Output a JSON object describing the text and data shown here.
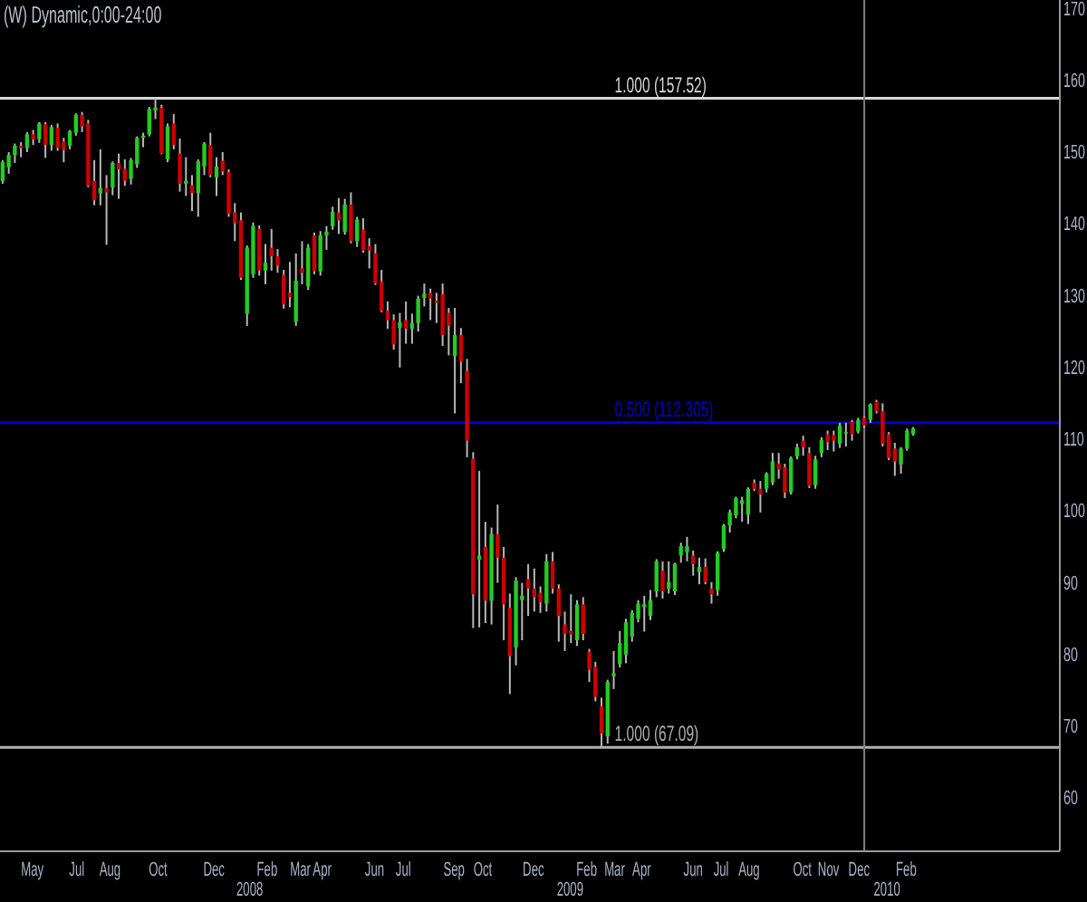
{
  "chart_data": {
    "type": "candlestick",
    "title": "(W) Dynamic,0:00-24:00",
    "x": [
      "2007-04-16",
      "2007-04-23",
      "2007-04-30",
      "2007-05-07",
      "2007-05-14",
      "2007-05-21",
      "2007-05-28",
      "2007-06-04",
      "2007-06-11",
      "2007-06-18",
      "2007-06-25",
      "2007-07-02",
      "2007-07-09",
      "2007-07-16",
      "2007-07-23",
      "2007-07-30",
      "2007-08-06",
      "2007-08-13",
      "2007-08-20",
      "2007-08-27",
      "2007-09-03",
      "2007-09-10",
      "2007-09-17",
      "2007-09-24",
      "2007-10-01",
      "2007-10-08",
      "2007-10-15",
      "2007-10-22",
      "2007-10-29",
      "2007-11-05",
      "2007-11-12",
      "2007-11-19",
      "2007-11-26",
      "2007-12-03",
      "2007-12-10",
      "2007-12-17",
      "2007-12-24",
      "2007-12-31",
      "2008-01-07",
      "2008-01-14",
      "2008-01-21",
      "2008-01-28",
      "2008-02-04",
      "2008-02-11",
      "2008-02-18",
      "2008-02-25",
      "2008-03-03",
      "2008-03-10",
      "2008-03-17",
      "2008-03-24",
      "2008-03-31",
      "2008-04-07",
      "2008-04-14",
      "2008-04-21",
      "2008-04-28",
      "2008-05-05",
      "2008-05-12",
      "2008-05-19",
      "2008-05-26",
      "2008-06-02",
      "2008-06-09",
      "2008-06-16",
      "2008-06-23",
      "2008-06-30",
      "2008-07-07",
      "2008-07-14",
      "2008-07-21",
      "2008-07-28",
      "2008-08-04",
      "2008-08-11",
      "2008-08-18",
      "2008-08-25",
      "2008-09-01",
      "2008-09-08",
      "2008-09-15",
      "2008-09-22",
      "2008-09-29",
      "2008-10-06",
      "2008-10-13",
      "2008-10-20",
      "2008-10-27",
      "2008-11-03",
      "2008-11-10",
      "2008-11-17",
      "2008-11-24",
      "2008-12-01",
      "2008-12-08",
      "2008-12-15",
      "2008-12-22",
      "2008-12-29",
      "2009-01-05",
      "2009-01-12",
      "2009-01-19",
      "2009-01-26",
      "2009-02-02",
      "2009-02-09",
      "2009-02-16",
      "2009-02-23",
      "2009-03-02",
      "2009-03-09",
      "2009-03-16",
      "2009-03-23",
      "2009-03-30",
      "2009-04-06",
      "2009-04-13",
      "2009-04-20",
      "2009-04-27",
      "2009-05-04",
      "2009-05-11",
      "2009-05-18",
      "2009-05-25",
      "2009-06-01",
      "2009-06-08",
      "2009-06-15",
      "2009-06-22",
      "2009-06-29",
      "2009-07-06",
      "2009-07-13",
      "2009-07-20",
      "2009-07-27",
      "2009-08-03",
      "2009-08-10",
      "2009-08-17",
      "2009-08-24",
      "2009-08-31",
      "2009-09-07",
      "2009-09-14",
      "2009-09-21",
      "2009-09-28",
      "2009-10-05",
      "2009-10-12",
      "2009-10-19",
      "2009-10-26",
      "2009-11-02",
      "2009-11-09",
      "2009-11-16",
      "2009-11-23",
      "2009-11-30",
      "2009-12-07",
      "2009-12-14",
      "2009-12-21",
      "2009-12-28",
      "2010-01-04",
      "2010-01-11",
      "2010-01-18",
      "2010-01-25",
      "2010-02-01",
      "2010-02-08",
      "2010-02-15",
      "2010-02-22"
    ],
    "ohlc": [
      [
        146.0,
        148.9,
        145.6,
        148.6
      ],
      [
        147.9,
        150.0,
        147.0,
        149.6
      ],
      [
        149.6,
        151.2,
        148.5,
        150.9
      ],
      [
        150.9,
        151.4,
        149.3,
        150.6
      ],
      [
        150.6,
        152.8,
        150.0,
        152.5
      ],
      [
        152.5,
        153.1,
        151.0,
        151.8
      ],
      [
        151.8,
        154.2,
        151.3,
        154.0
      ],
      [
        153.9,
        154.2,
        149.2,
        151.0
      ],
      [
        151.0,
        153.8,
        150.2,
        153.5
      ],
      [
        153.4,
        154.0,
        150.2,
        150.6
      ],
      [
        151.5,
        152.0,
        148.6,
        150.3
      ],
      [
        150.9,
        153.1,
        150.4,
        152.9
      ],
      [
        152.7,
        155.4,
        152.3,
        155.2
      ],
      [
        155.2,
        155.6,
        152.8,
        153.6
      ],
      [
        154.0,
        154.5,
        145.1,
        145.3
      ],
      [
        146.0,
        148.9,
        142.6,
        143.3
      ],
      [
        144.3,
        150.4,
        142.6,
        145.0
      ],
      [
        145.0,
        146.8,
        137.1,
        144.4
      ],
      [
        145.1,
        148.7,
        144.0,
        148.5
      ],
      [
        148.5,
        149.8,
        143.5,
        147.6
      ],
      [
        147.7,
        149.0,
        145.3,
        146.0
      ],
      [
        146.3,
        149.2,
        145.5,
        148.9
      ],
      [
        148.3,
        152.2,
        147.8,
        152.0
      ],
      [
        152.0,
        152.7,
        150.7,
        152.3
      ],
      [
        152.5,
        156.3,
        152.2,
        156.0
      ],
      [
        155.8,
        157.52,
        154.6,
        156.2
      ],
      [
        156.2,
        156.6,
        149.7,
        149.8
      ],
      [
        149.0,
        154.0,
        148.6,
        153.6
      ],
      [
        154.0,
        155.3,
        150.4,
        151.0
      ],
      [
        149.8,
        151.9,
        144.5,
        145.6
      ],
      [
        145.6,
        149.3,
        143.9,
        146.0
      ],
      [
        145.4,
        146.8,
        141.8,
        144.3
      ],
      [
        144.3,
        149.0,
        141.0,
        148.7
      ],
      [
        148.0,
        151.4,
        146.8,
        151.2
      ],
      [
        151.0,
        152.7,
        146.5,
        146.8
      ],
      [
        146.5,
        149.3,
        143.9,
        148.0
      ],
      [
        148.8,
        150.0,
        146.8,
        147.3
      ],
      [
        147.2,
        147.6,
        141.0,
        141.4
      ],
      [
        141.6,
        142.9,
        137.6,
        140.1
      ],
      [
        140.5,
        141.6,
        132.2,
        132.5
      ],
      [
        127.5,
        137.0,
        125.8,
        136.7
      ],
      [
        133.0,
        140.2,
        132.5,
        139.7
      ],
      [
        139.3,
        139.8,
        132.8,
        133.5
      ],
      [
        133.5,
        137.2,
        131.6,
        134.6
      ],
      [
        136.7,
        139.3,
        133.5,
        135.5
      ],
      [
        135.5,
        136.5,
        133.2,
        134.2
      ],
      [
        132.9,
        133.6,
        128.2,
        128.8
      ],
      [
        130.4,
        134.7,
        128.4,
        129.8
      ],
      [
        126.4,
        135.9,
        125.8,
        132.1
      ],
      [
        133.8,
        137.6,
        131.6,
        133.2
      ],
      [
        131.3,
        137.2,
        130.8,
        136.7
      ],
      [
        138.4,
        138.8,
        133.0,
        133.4
      ],
      [
        133.4,
        139.0,
        132.8,
        138.4
      ],
      [
        138.4,
        139.7,
        136.4,
        138.9
      ],
      [
        139.7,
        142.4,
        139.2,
        141.7
      ],
      [
        141.6,
        143.6,
        138.6,
        140.5
      ],
      [
        138.9,
        143.5,
        138.5,
        142.7
      ],
      [
        142.7,
        144.4,
        137.3,
        137.6
      ],
      [
        137.6,
        141.0,
        136.8,
        140.6
      ],
      [
        139.2,
        140.8,
        136.0,
        136.3
      ],
      [
        136.9,
        138.0,
        133.8,
        136.3
      ],
      [
        135.9,
        137.2,
        131.5,
        131.7
      ],
      [
        132.0,
        133.6,
        127.7,
        127.9
      ],
      [
        127.9,
        129.2,
        125.4,
        126.6
      ],
      [
        126.6,
        127.4,
        122.5,
        123.2
      ],
      [
        125.5,
        127.6,
        120.0,
        126.3
      ],
      [
        126.6,
        129.2,
        123.3,
        125.4
      ],
      [
        125.4,
        127.5,
        123.3,
        126.2
      ],
      [
        126.2,
        130.0,
        125.0,
        129.6
      ],
      [
        129.7,
        131.7,
        128.5,
        130.3
      ],
      [
        130.4,
        131.0,
        126.6,
        129.6
      ],
      [
        129.3,
        130.4,
        126.2,
        129.0
      ],
      [
        130.2,
        131.7,
        123.0,
        124.5
      ],
      [
        127.6,
        128.3,
        121.7,
        125.8
      ],
      [
        121.6,
        128.3,
        113.6,
        124.5
      ],
      [
        124.5,
        125.5,
        117.8,
        120.8
      ],
      [
        119.5,
        121.2,
        107.5,
        109.8
      ],
      [
        107.3,
        108.2,
        83.7,
        88.4
      ],
      [
        93.2,
        105.6,
        83.8,
        93.8
      ],
      [
        95.0,
        98.5,
        84.4,
        87.5
      ],
      [
        87.5,
        97.7,
        84.2,
        96.8
      ],
      [
        96.8,
        100.9,
        90.0,
        93.5
      ],
      [
        93.5,
        95.0,
        82.0,
        87.0
      ],
      [
        86.5,
        88.5,
        74.5,
        79.8
      ],
      [
        81.0,
        90.8,
        78.5,
        90.3
      ],
      [
        87.6,
        90.0,
        82.0,
        88.2
      ],
      [
        90.5,
        92.6,
        85.4,
        89.2
      ],
      [
        89.2,
        92.0,
        86.0,
        88.0
      ],
      [
        88.6,
        89.5,
        85.8,
        87.3
      ],
      [
        87.1,
        94.0,
        86.0,
        93.0
      ],
      [
        93.0,
        94.3,
        88.5,
        89.2
      ],
      [
        89.2,
        89.8,
        81.8,
        85.4
      ],
      [
        84.2,
        86.0,
        80.5,
        82.9
      ],
      [
        83.3,
        88.4,
        81.6,
        82.8
      ],
      [
        82.0,
        87.6,
        81.2,
        87.0
      ],
      [
        87.0,
        88.0,
        82.0,
        82.9
      ],
      [
        80.4,
        80.8,
        76.2,
        77.9
      ],
      [
        78.3,
        79.0,
        73.5,
        74.1
      ],
      [
        72.8,
        74.0,
        67.09,
        69.0
      ],
      [
        68.6,
        76.5,
        67.6,
        76.2
      ],
      [
        77.0,
        80.5,
        75.2,
        77.4
      ],
      [
        78.7,
        83.3,
        78.2,
        81.6
      ],
      [
        80.0,
        85.0,
        78.8,
        84.5
      ],
      [
        82.5,
        86.2,
        81.8,
        85.8
      ],
      [
        85.0,
        87.6,
        84.5,
        87.1
      ],
      [
        86.6,
        88.2,
        83.2,
        87.0
      ],
      [
        85.4,
        89.0,
        84.8,
        87.6
      ],
      [
        88.8,
        93.3,
        88.0,
        93.0
      ],
      [
        91.7,
        93.0,
        87.8,
        88.8
      ],
      [
        89.2,
        93.0,
        88.5,
        90.1
      ],
      [
        88.8,
        92.8,
        88.3,
        92.6
      ],
      [
        93.8,
        95.6,
        92.8,
        95.1
      ],
      [
        94.3,
        96.4,
        93.0,
        95.1
      ],
      [
        93.8,
        94.5,
        91.0,
        92.6
      ],
      [
        91.5,
        93.5,
        89.8,
        92.2
      ],
      [
        92.2,
        93.4,
        89.8,
        90.1
      ],
      [
        89.2,
        90.1,
        87.1,
        88.4
      ],
      [
        89.0,
        94.4,
        88.2,
        94.2
      ],
      [
        94.7,
        98.2,
        94.3,
        98.0
      ],
      [
        98.0,
        100.2,
        97.0,
        99.8
      ],
      [
        99.4,
        102.0,
        99.0,
        101.8
      ],
      [
        101.0,
        102.0,
        98.5,
        101.5
      ],
      [
        99.5,
        103.3,
        98.2,
        103.1
      ],
      [
        103.9,
        104.4,
        102.8,
        103.1
      ],
      [
        103.1,
        104.2,
        99.8,
        102.3
      ],
      [
        103.1,
        105.4,
        102.6,
        105.2
      ],
      [
        104.0,
        108.1,
        103.6,
        106.9
      ],
      [
        106.6,
        108.1,
        104.5,
        105.8
      ],
      [
        106.1,
        106.6,
        101.8,
        102.6
      ],
      [
        102.6,
        107.6,
        102.3,
        107.4
      ],
      [
        107.6,
        109.4,
        107.2,
        108.9
      ],
      [
        109.8,
        110.5,
        107.7,
        108.9
      ],
      [
        108.1,
        108.9,
        103.2,
        103.5
      ],
      [
        103.6,
        107.7,
        103.1,
        107.2
      ],
      [
        108.1,
        110.3,
        107.5,
        109.9
      ],
      [
        110.7,
        111.2,
        108.5,
        109.6
      ],
      [
        110.6,
        111.2,
        108.3,
        109.8
      ],
      [
        109.4,
        112.3,
        108.8,
        111.9
      ],
      [
        110.8,
        112.3,
        109.0,
        111.0
      ],
      [
        112.4,
        112.7,
        109.8,
        110.7
      ],
      [
        111.1,
        113.0,
        110.8,
        112.7
      ],
      [
        113.0,
        113.2,
        111.6,
        111.9
      ],
      [
        112.7,
        115.0,
        112.3,
        114.9
      ],
      [
        115.2,
        115.5,
        113.6,
        113.9
      ],
      [
        113.9,
        115.0,
        109.0,
        109.4
      ],
      [
        110.7,
        111.0,
        107.1,
        107.4
      ],
      [
        108.7,
        109.5,
        104.9,
        106.9
      ],
      [
        106.5,
        108.9,
        105.2,
        108.7
      ],
      [
        108.7,
        111.5,
        108.4,
        111.2
      ],
      [
        110.7,
        111.7,
        110.5,
        111.5
      ]
    ],
    "colors": [
      "#22cc22",
      "#22cc22",
      "#22cc22",
      "#cc0000",
      "#22cc22",
      "#cc0000",
      "#22cc22",
      "#cc0000",
      "#22cc22",
      "#cc0000",
      "#cc0000",
      "#22cc22",
      "#22cc22",
      "#cc0000",
      "#cc0000",
      "#cc0000",
      "#22cc22",
      "#cc0000",
      "#22cc22",
      "#cc0000",
      "#cc0000",
      "#22cc22",
      "#22cc22",
      "#22cc22",
      "#22cc22",
      "#22cc22",
      "#cc0000",
      "#22cc22",
      "#cc0000",
      "#cc0000",
      "#22cc22",
      "#cc0000",
      "#22cc22",
      "#22cc22",
      "#cc0000",
      "#22cc22",
      "#cc0000",
      "#cc0000",
      "#cc0000",
      "#cc0000",
      "#22cc22",
      "#22cc22",
      "#cc0000",
      "#22cc22",
      "#cc0000",
      "#cc0000",
      "#cc0000",
      "#cc0000",
      "#22cc22",
      "#cc0000",
      "#22cc22",
      "#cc0000",
      "#22cc22",
      "#22cc22",
      "#22cc22",
      "#cc0000",
      "#22cc22",
      "#cc0000",
      "#22cc22",
      "#cc0000",
      "#cc0000",
      "#cc0000",
      "#cc0000",
      "#cc0000",
      "#cc0000",
      "#22cc22",
      "#cc0000",
      "#22cc22",
      "#22cc22",
      "#22cc22",
      "#cc0000",
      "#cc0000",
      "#cc0000",
      "#cc0000",
      "#22cc22",
      "#cc0000",
      "#cc0000",
      "#cc0000",
      "#22cc22",
      "#cc0000",
      "#22cc22",
      "#cc0000",
      "#cc0000",
      "#cc0000",
      "#22cc22",
      "#22cc22",
      "#cc0000",
      "#cc0000",
      "#cc0000",
      "#22cc22",
      "#cc0000",
      "#cc0000",
      "#cc0000",
      "#cc0000",
      "#22cc22",
      "#cc0000",
      "#cc0000",
      "#cc0000",
      "#cc0000",
      "#22cc22",
      "#22cc22",
      "#22cc22",
      "#22cc22",
      "#22cc22",
      "#22cc22",
      "#22cc22",
      "#22cc22",
      "#22cc22",
      "#cc0000",
      "#22cc22",
      "#22cc22",
      "#22cc22",
      "#22cc22",
      "#cc0000",
      "#22cc22",
      "#cc0000",
      "#cc0000",
      "#22cc22",
      "#22cc22",
      "#22cc22",
      "#22cc22",
      "#22cc22",
      "#22cc22",
      "#cc0000",
      "#cc0000",
      "#22cc22",
      "#22cc22",
      "#cc0000",
      "#cc0000",
      "#22cc22",
      "#22cc22",
      "#cc0000",
      "#cc0000",
      "#22cc22",
      "#22cc22",
      "#cc0000",
      "#cc0000",
      "#22cc22",
      "#22cc22",
      "#cc0000",
      "#22cc22",
      "#cc0000",
      "#22cc22",
      "#cc0000",
      "#cc0000",
      "#cc0000",
      "#cc0000",
      "#22cc22",
      "#22cc22",
      "#22cc22"
    ],
    "xlim": [
      "2007-04-13",
      "2010-08-09"
    ],
    "xticks": [
      {
        "value": "2007-05-20",
        "label": "May"
      },
      {
        "value": "2007-07-10",
        "label": "Jul"
      },
      {
        "value": "2007-08-17",
        "label": "Aug"
      },
      {
        "value": "2007-10-11",
        "label": "Oct"
      },
      {
        "value": "2007-12-14",
        "label": "Dec"
      },
      {
        "value": "2008-02-13",
        "label": "Feb"
      },
      {
        "value": "2008-03-22",
        "label": "Mar"
      },
      {
        "value": "2008-04-16",
        "label": "Apr"
      },
      {
        "value": "2008-06-15",
        "label": "Jun"
      },
      {
        "value": "2008-07-18",
        "label": "Jul"
      },
      {
        "value": "2008-09-14",
        "label": "Sep"
      },
      {
        "value": "2008-10-17",
        "label": "Oct"
      },
      {
        "value": "2008-12-14",
        "label": "Dec"
      },
      {
        "value": "2009-02-13",
        "label": "Feb"
      },
      {
        "value": "2009-03-17",
        "label": "Mar"
      },
      {
        "value": "2009-04-17",
        "label": "Apr"
      },
      {
        "value": "2009-06-15",
        "label": "Jun"
      },
      {
        "value": "2009-07-17",
        "label": "Jul"
      },
      {
        "value": "2009-08-18",
        "label": "Aug"
      },
      {
        "value": "2009-10-18",
        "label": "Oct"
      },
      {
        "value": "2009-11-17",
        "label": "Nov"
      },
      {
        "value": "2009-12-22",
        "label": "Dec"
      },
      {
        "value": "2010-02-14",
        "label": "Feb"
      }
    ],
    "x2lim": [
      "2007-04-13",
      "2010-08-09"
    ],
    "x2ticks": [
      {
        "value": "2008-01-24",
        "label": "2008"
      },
      {
        "value": "2009-01-25",
        "label": "2009"
      },
      {
        "value": "2010-01-23",
        "label": "2010"
      }
    ],
    "ylim": [
      52.6,
      171.2
    ],
    "yticks": [
      60,
      70,
      80,
      90,
      100,
      110,
      120,
      130,
      140,
      150,
      160,
      170
    ],
    "ref_lines": [
      {
        "axis": "y",
        "value": 157.52,
        "label": "1.000 (157.52)",
        "color": "#d8d8d8"
      },
      {
        "axis": "y",
        "value": 112.305,
        "label": "0.500 (112.305)",
        "color": "#0000cc"
      },
      {
        "axis": "y",
        "value": 67.09,
        "label": "1.000 (67.09)",
        "color": "#b0b0b0"
      },
      {
        "axis": "x",
        "value": "2009-12-28",
        "color": "#808080"
      }
    ]
  }
}
